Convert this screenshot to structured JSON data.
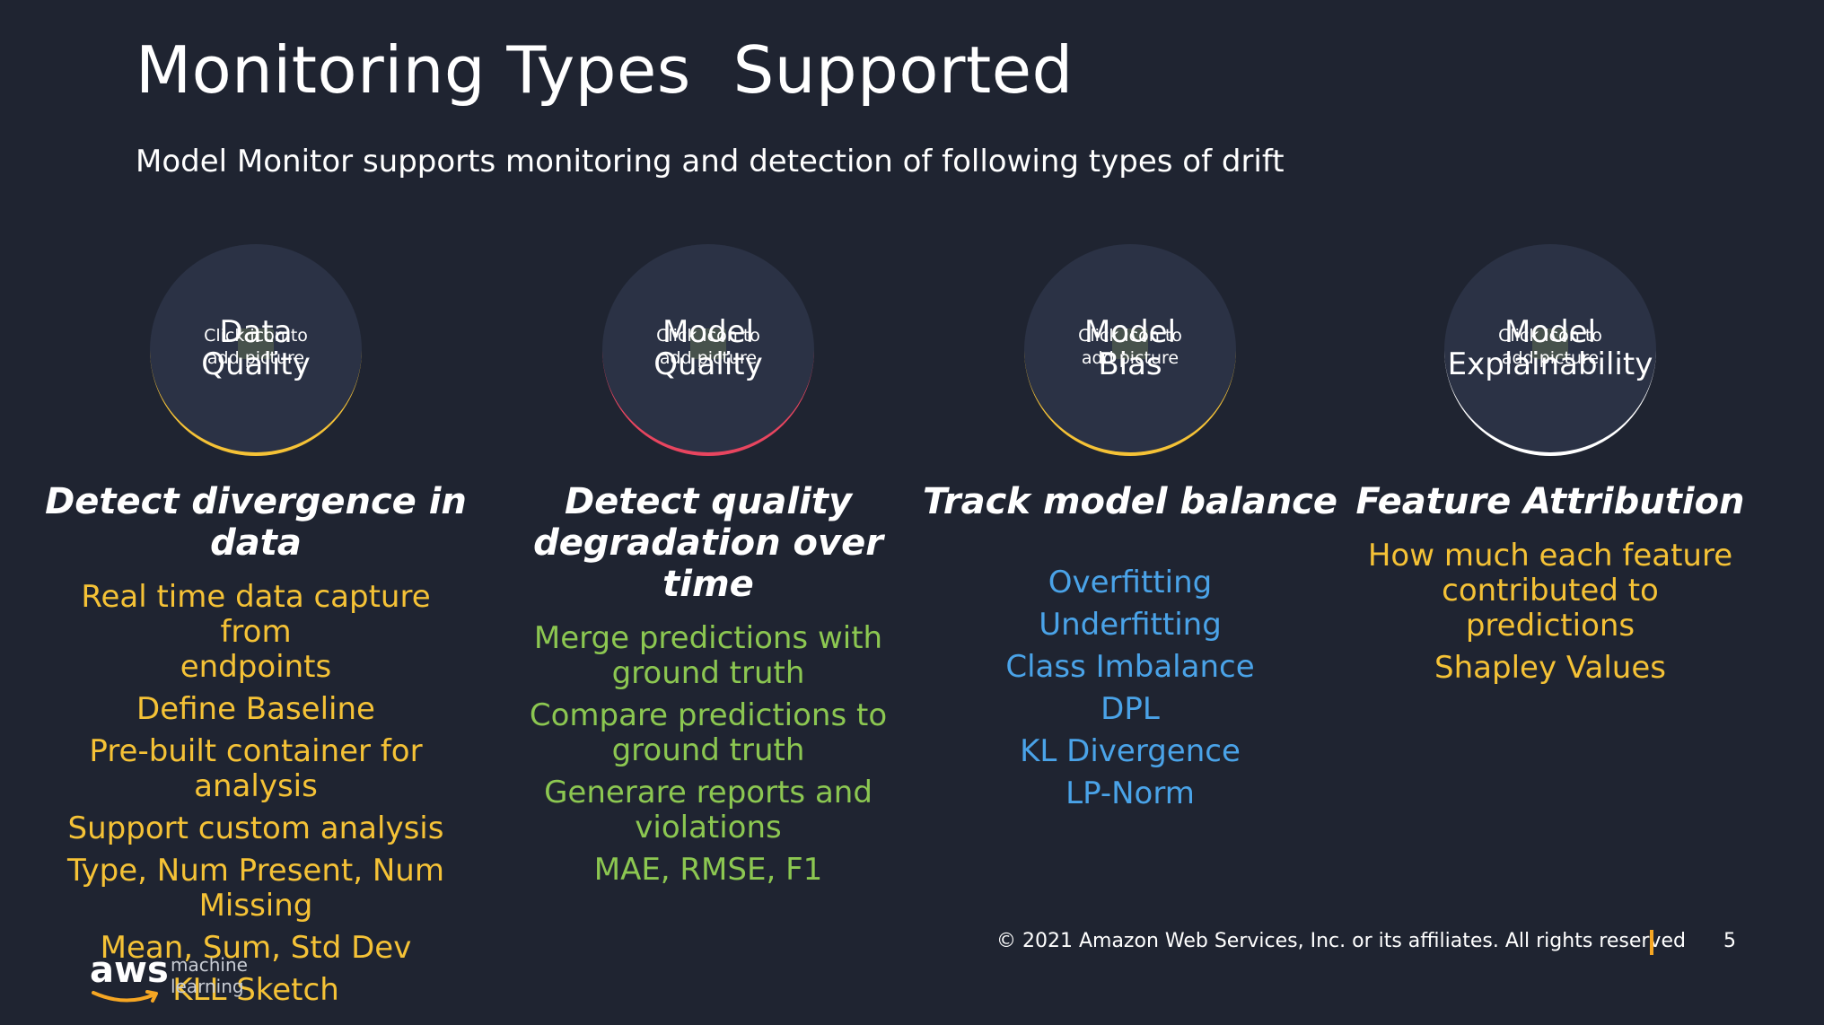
{
  "slide": {
    "title": "Monitoring Types  Supported",
    "subtitle": "Model Monitor supports monitoring and detection of following types of drift"
  },
  "colors": {
    "background": "#1f2431",
    "yellow": "#f5c236",
    "green": "#8cc751",
    "blue": "#4aa3e8",
    "red_arc": "#e8455f"
  },
  "columns": [
    {
      "circle_label": "Data\nQuality",
      "placeholder": "Click icon to\nadd picture",
      "heading": "Detect divergence in\ndata",
      "items": [
        "Real time data capture from\nendpoints",
        "Define Baseline",
        "Pre-built container for\nanalysis",
        "Support custom analysis",
        "Type, Num Present, Num\nMissing",
        "Mean, Sum, Std  Dev",
        "KLL Sketch"
      ]
    },
    {
      "circle_label": "Model\nQuality",
      "placeholder": "Click icon to\nadd picture",
      "heading": "Detect  quality\ndegradation over\ntime",
      "items": [
        "Merge predictions with\nground truth",
        "Compare predictions to\nground truth",
        "Generare reports and\nviolations",
        "MAE, RMSE, F1"
      ]
    },
    {
      "circle_label": "Model\nBias",
      "placeholder": "Click icon to\nadd picture",
      "heading": "Track model balance",
      "items": [
        "Overfitting",
        "Underfitting",
        "Class Imbalance",
        "DPL",
        "KL Divergence",
        "LP-Norm"
      ]
    },
    {
      "circle_label": "Model\nExplainability",
      "placeholder": "Click icon to\nadd picture",
      "heading": "Feature Attribution",
      "items": [
        "How much each feature\ncontributed to\npredictions",
        "Shapley Values"
      ]
    }
  ],
  "footer": {
    "copyright": "© 2021 Amazon Web Services, Inc. or its affiliates. All rights reserved",
    "page_number": "5"
  },
  "logo": {
    "wordmark": "aws",
    "subtext": "machine\nlearning"
  }
}
